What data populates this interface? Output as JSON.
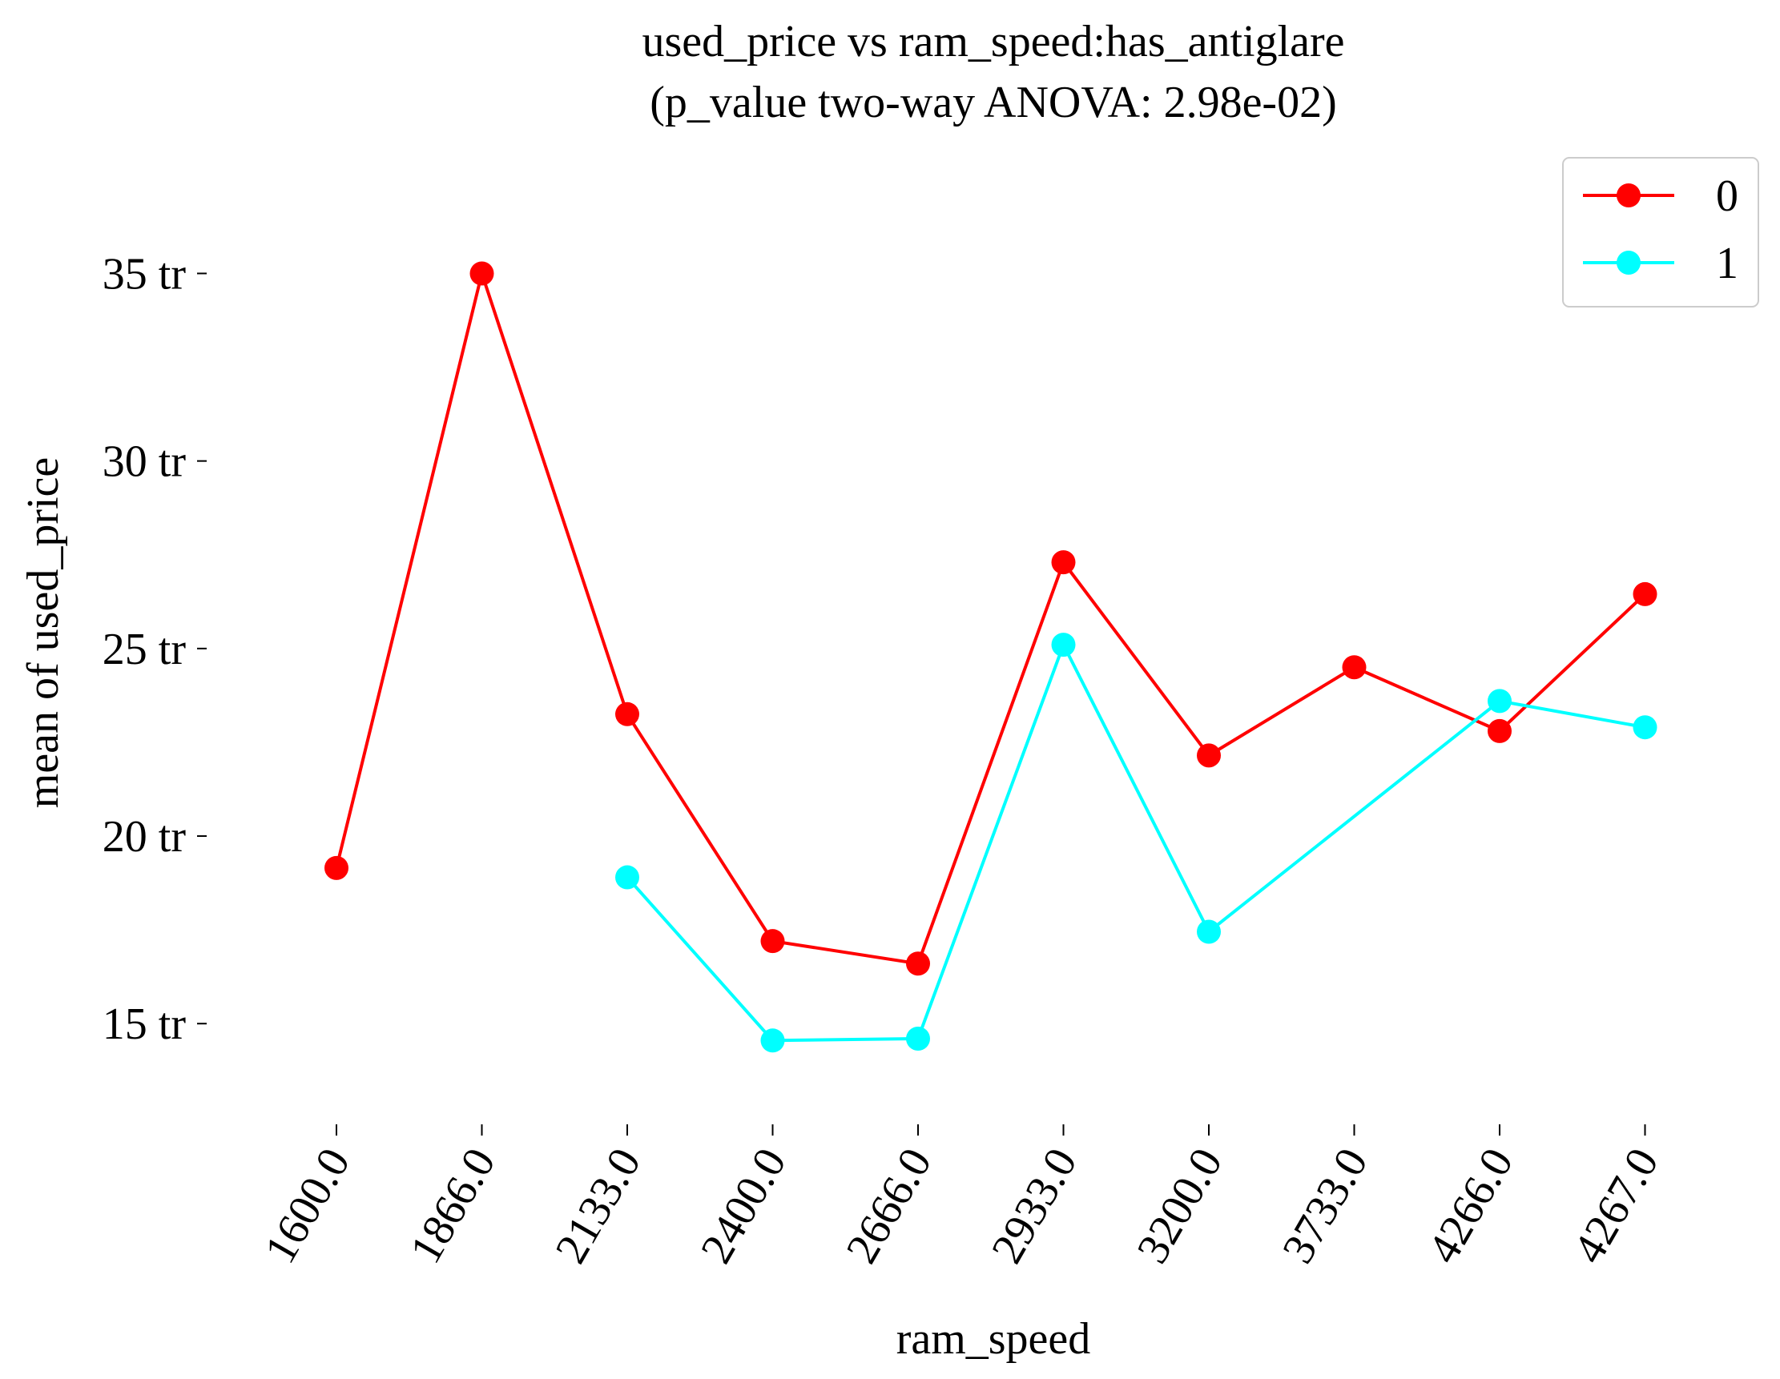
{
  "chart_data": {
    "type": "line",
    "title": "used_price vs ram_speed:has_antiglare",
    "subtitle": "(p_value two-way ANOVA: 2.98e-02)",
    "xlabel": "ram_speed",
    "ylabel": "mean of used_price",
    "categories": [
      "1600.0",
      "1866.0",
      "2133.0",
      "2400.0",
      "2666.0",
      "2933.0",
      "3200.0",
      "3733.0",
      "4266.0",
      "4267.0"
    ],
    "yticks": [
      15,
      20,
      25,
      30,
      35
    ],
    "ytick_labels": [
      "15 tr",
      "20 tr",
      "25 tr",
      "30 tr",
      "35 tr"
    ],
    "ylim": [
      12.4,
      37.7
    ],
    "grid": false,
    "legend_position": "top-right",
    "series": [
      {
        "name": "0",
        "color": "#ff0000",
        "values": [
          19.15,
          35.0,
          23.25,
          17.2,
          16.6,
          27.3,
          22.15,
          24.5,
          22.8,
          26.45
        ]
      },
      {
        "name": "1",
        "color": "#00ffff",
        "values": [
          null,
          null,
          18.9,
          14.55,
          14.6,
          25.1,
          17.45,
          null,
          23.6,
          22.9
        ]
      }
    ]
  }
}
